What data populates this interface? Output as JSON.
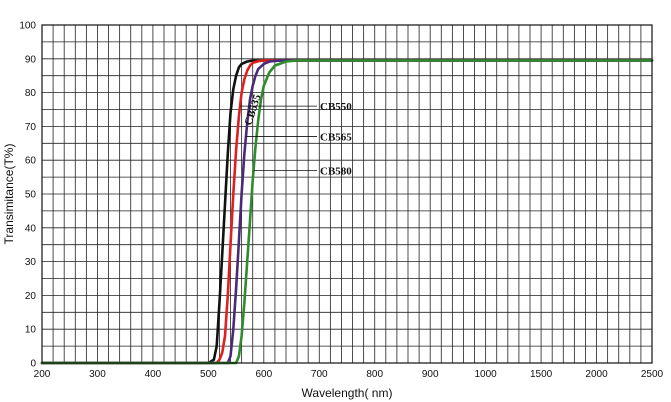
{
  "chart_data": {
    "type": "line",
    "title": "",
    "xlabel": "Wavelength( nm)",
    "ylabel": "Transimitance(T%)",
    "x_ticks": [
      "200",
      "300",
      "400",
      "500",
      "600",
      "700",
      "800",
      "900",
      "1000",
      "1500",
      "2000",
      "2500"
    ],
    "x_tick_values": [
      200,
      300,
      400,
      500,
      600,
      700,
      800,
      900,
      1000,
      1500,
      2000,
      2500
    ],
    "x_scale": "piecewise: 100 nm per major division from 200 to 1000 nm, 500 nm per major division from 1000 to 2500 nm",
    "y_ticks": [
      "0",
      "10",
      "20",
      "30",
      "40",
      "50",
      "60",
      "70",
      "80",
      "90",
      "100"
    ],
    "ylim": [
      0,
      100
    ],
    "grid": true,
    "series": [
      {
        "name": "CB535",
        "color": "#111111",
        "x": [
          200,
          500,
          510,
          515,
          520,
          525,
          530,
          535,
          540,
          545,
          550,
          555,
          560,
          570,
          580,
          600,
          700,
          1000,
          2500
        ],
        "y": [
          0,
          0,
          1,
          5,
          18,
          32,
          47,
          62,
          74,
          81,
          85,
          87.5,
          88.5,
          89.2,
          89.5,
          89.5,
          89.5,
          89.5,
          89.5
        ]
      },
      {
        "name": "CB550",
        "color": "#e02020",
        "x": [
          200,
          515,
          520,
          525,
          530,
          535,
          540,
          545,
          550,
          555,
          560,
          565,
          570,
          575,
          580,
          590,
          600,
          620,
          700,
          1000,
          2500
        ],
        "y": [
          0,
          0,
          1,
          3,
          8,
          20,
          35,
          50,
          63,
          73,
          80,
          84,
          86.5,
          88,
          88.8,
          89.3,
          89.5,
          89.5,
          89.5,
          89.5,
          89.5
        ]
      },
      {
        "name": "CB565",
        "color": "#4a2a78",
        "x": [
          200,
          535,
          540,
          545,
          550,
          555,
          560,
          565,
          570,
          575,
          580,
          585,
          590,
          600,
          610,
          630,
          700,
          1000,
          2500
        ],
        "y": [
          0,
          0,
          2,
          10,
          22,
          36,
          50,
          62,
          71,
          78,
          82,
          85,
          87,
          88.5,
          89.2,
          89.5,
          89.5,
          89.5,
          89.5
        ]
      },
      {
        "name": "CB580",
        "color": "#2e8b2e",
        "x": [
          200,
          550,
          555,
          560,
          565,
          570,
          575,
          580,
          585,
          590,
          595,
          600,
          610,
          620,
          640,
          660,
          700,
          1000,
          2500
        ],
        "y": [
          0,
          0,
          2,
          8,
          18,
          30,
          42,
          54,
          64,
          72,
          78,
          82,
          86,
          88,
          89.2,
          89.5,
          89.5,
          89.5,
          89.5
        ]
      }
    ],
    "annotations": [
      {
        "text": "CB535",
        "series": "CB535"
      },
      {
        "text": "CB550",
        "series": "CB550"
      },
      {
        "text": "CB565",
        "series": "CB565"
      },
      {
        "text": "CB580",
        "series": "CB580"
      }
    ]
  }
}
